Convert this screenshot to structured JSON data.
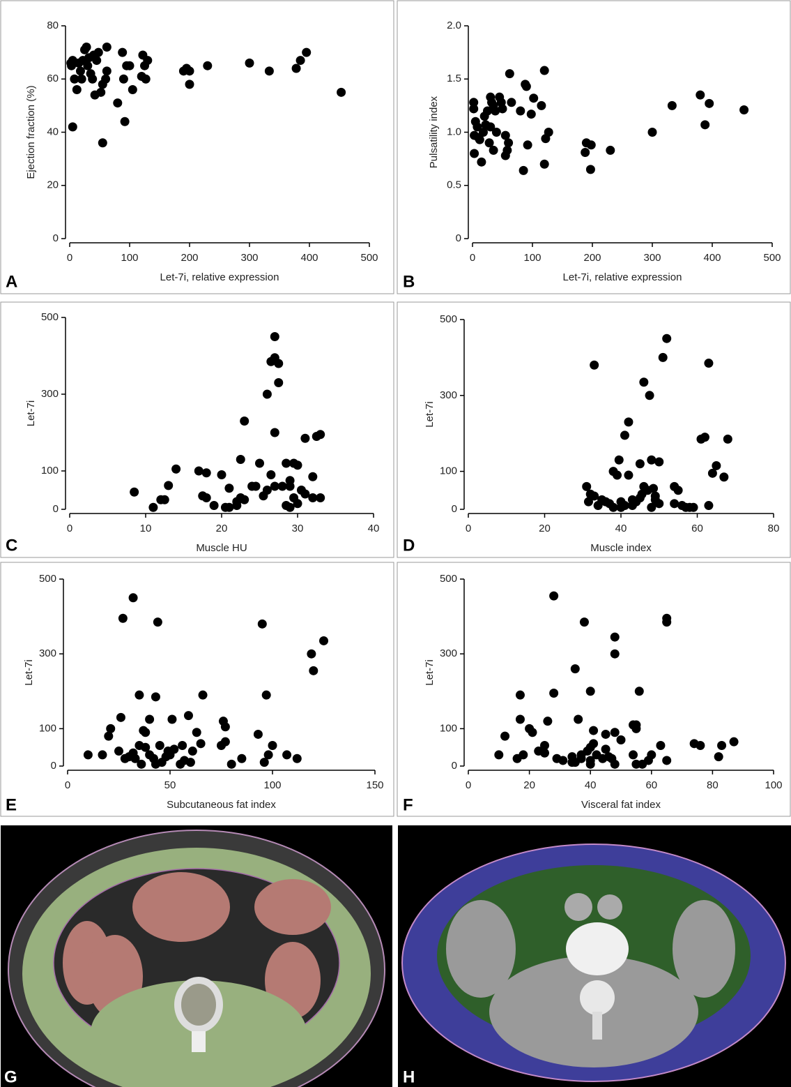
{
  "chart_data": [
    {
      "type": "scatter",
      "panel_label": "A",
      "xlabel": "Let-7i, relative expression",
      "ylabel": "Ejection fraction (%)",
      "color": "#000000",
      "xlim": [
        0,
        500
      ],
      "ylim": [
        0,
        80
      ],
      "xticks": [
        0,
        100,
        200,
        300,
        400,
        500
      ],
      "yticks": [
        0,
        20,
        40,
        60,
        80
      ],
      "x": [
        2,
        3,
        5,
        8,
        5,
        12,
        15,
        18,
        20,
        22,
        25,
        28,
        30,
        32,
        35,
        38,
        40,
        42,
        45,
        48,
        52,
        55,
        55,
        60,
        62,
        62,
        80,
        88,
        90,
        92,
        95,
        100,
        105,
        120,
        122,
        125,
        127,
        130,
        190,
        195,
        200,
        200,
        230,
        300,
        333,
        378,
        385,
        395,
        453
      ],
      "values": [
        66,
        65,
        67,
        60,
        42,
        56,
        66,
        63,
        60,
        67,
        71,
        72,
        65,
        68,
        62,
        60,
        69,
        54,
        67,
        70,
        55,
        58,
        36,
        60,
        72,
        63,
        51,
        70,
        60,
        44,
        65,
        65,
        56,
        61,
        69,
        65,
        60,
        67,
        63,
        64,
        63,
        58,
        65,
        66,
        63,
        64,
        67,
        70,
        55
      ]
    },
    {
      "type": "scatter",
      "panel_label": "B",
      "xlabel": "Let-7i, relative expression",
      "ylabel": "Pulsatility index",
      "color": "#000000",
      "xlim": [
        0,
        500
      ],
      "ylim": [
        0,
        2
      ],
      "xticks": [
        0,
        100,
        200,
        300,
        400,
        500
      ],
      "yticks": [
        0,
        0.5,
        {
          "value": 1,
          "label": "1.0"
        },
        1.5,
        {
          "value": 2,
          "label": "2.0"
        }
      ],
      "x": [
        2,
        2,
        3,
        3,
        5,
        8,
        10,
        12,
        15,
        18,
        20,
        22,
        25,
        28,
        30,
        30,
        32,
        35,
        35,
        38,
        40,
        45,
        48,
        50,
        55,
        55,
        58,
        60,
        62,
        65,
        80,
        85,
        88,
        90,
        92,
        98,
        102,
        115,
        120,
        120,
        122,
        127,
        188,
        190,
        197,
        198,
        230,
        300,
        333,
        380,
        388,
        395,
        453
      ],
      "values": [
        1.22,
        1.28,
        0.97,
        0.8,
        1.1,
        1.05,
        0.95,
        0.93,
        0.72,
        1.0,
        1.15,
        1.07,
        1.2,
        0.9,
        1.33,
        1.05,
        1.28,
        0.83,
        1.25,
        1.2,
        1.0,
        1.33,
        1.28,
        1.22,
        0.97,
        0.78,
        0.83,
        0.9,
        1.55,
        1.28,
        1.2,
        0.64,
        1.45,
        1.43,
        0.88,
        1.17,
        1.32,
        1.25,
        1.58,
        0.7,
        0.94,
        1.0,
        0.81,
        0.9,
        0.65,
        0.88,
        0.83,
        1.0,
        1.25,
        1.35,
        1.07,
        1.27,
        1.21
      ]
    },
    {
      "type": "scatter",
      "panel_label": "C",
      "xlabel": "Muscle HU",
      "ylabel": "Let-7i",
      "color": "#000000",
      "xlim": [
        0,
        40
      ],
      "ylim": [
        0,
        500
      ],
      "xticks": [
        0,
        10,
        20,
        30,
        40
      ],
      "yticks": [
        0,
        100,
        300,
        500
      ],
      "x": [
        8.5,
        11,
        12,
        12.5,
        13,
        14,
        17,
        17.5,
        18,
        18,
        19,
        20,
        20.5,
        21,
        21,
        22,
        22,
        22.5,
        22.5,
        23,
        23,
        24,
        24.5,
        25,
        25.5,
        26,
        26,
        26.5,
        26.5,
        27,
        27,
        27,
        27,
        27.5,
        27.5,
        28,
        28.5,
        28.5,
        29,
        29,
        29,
        29.5,
        29.5,
        30,
        30,
        30.5,
        31,
        31,
        32,
        32,
        32.5,
        33,
        33
      ],
      "values": [
        45,
        5,
        25,
        25,
        62,
        105,
        100,
        35,
        95,
        30,
        10,
        90,
        5,
        5,
        55,
        10,
        20,
        130,
        30,
        25,
        230,
        60,
        60,
        120,
        35,
        300,
        50,
        385,
        90,
        395,
        200,
        450,
        60,
        380,
        330,
        60,
        10,
        120,
        5,
        60,
        75,
        120,
        30,
        15,
        115,
        50,
        40,
        185,
        30,
        85,
        190,
        30,
        195
      ]
    },
    {
      "type": "scatter",
      "panel_label": "D",
      "xlabel": "Muscle index",
      "ylabel": "Let-7i",
      "color": "#000000",
      "xlim": [
        0,
        80
      ],
      "ylim": [
        0,
        500
      ],
      "xticks": [
        0,
        20,
        40,
        60,
        80
      ],
      "yticks": [
        0,
        100,
        300,
        500
      ],
      "x": [
        31,
        31.5,
        32,
        33,
        33,
        34,
        35,
        36,
        37,
        38,
        38,
        39,
        39.5,
        40,
        40,
        41,
        41,
        42,
        42,
        43,
        43,
        44,
        45,
        45,
        45.5,
        46,
        46,
        47,
        47.5,
        48,
        48,
        48.5,
        49,
        49,
        50,
        50,
        51,
        52,
        54,
        54,
        55,
        56,
        57,
        58,
        59,
        61,
        62,
        63,
        63,
        64,
        65,
        67,
        68
      ],
      "values": [
        60,
        20,
        40,
        380,
        35,
        10,
        25,
        20,
        15,
        100,
        5,
        90,
        130,
        20,
        5,
        10,
        195,
        90,
        230,
        25,
        10,
        20,
        30,
        120,
        40,
        60,
        335,
        50,
        300,
        130,
        5,
        55,
        35,
        25,
        125,
        15,
        400,
        450,
        60,
        15,
        50,
        10,
        5,
        5,
        5,
        185,
        190,
        385,
        10,
        95,
        115,
        85,
        185
      ]
    },
    {
      "type": "scatter",
      "panel_label": "E",
      "xlabel": "Subcutaneous fat index",
      "ylabel": "Let-7i",
      "color": "#000000",
      "xlim": [
        0,
        150
      ],
      "ylim": [
        0,
        500
      ],
      "xticks": [
        0,
        50,
        100,
        150
      ],
      "yticks": [
        0,
        100,
        300,
        500
      ],
      "x": [
        10,
        17,
        20,
        21,
        25,
        26,
        27,
        28,
        30,
        32,
        32,
        33,
        35,
        35,
        36,
        37,
        38,
        38,
        40,
        40,
        42,
        43,
        43,
        44,
        45,
        46,
        48,
        49,
        50,
        51,
        52,
        55,
        56,
        57,
        59,
        60,
        61,
        63,
        65,
        66,
        75,
        76,
        77,
        77,
        80,
        85,
        93,
        95,
        96,
        97,
        98,
        100,
        107,
        112,
        119,
        120,
        125
      ],
      "values": [
        30,
        30,
        80,
        100,
        40,
        130,
        395,
        20,
        25,
        450,
        35,
        20,
        55,
        190,
        5,
        95,
        50,
        90,
        125,
        30,
        20,
        185,
        5,
        385,
        55,
        10,
        25,
        40,
        30,
        125,
        45,
        5,
        55,
        15,
        135,
        10,
        40,
        90,
        60,
        190,
        55,
        120,
        105,
        65,
        5,
        20,
        85,
        380,
        10,
        190,
        30,
        55,
        30,
        20,
        300,
        255,
        335
      ]
    },
    {
      "type": "scatter",
      "panel_label": "F",
      "xlabel": "Visceral fat index",
      "ylabel": "Let-7i",
      "color": "#000000",
      "xlim": [
        0,
        100
      ],
      "ylim": [
        0,
        500
      ],
      "xticks": [
        0,
        20,
        40,
        60,
        80,
        100
      ],
      "yticks": [
        0,
        100,
        300,
        500
      ],
      "x": [
        10,
        12,
        16,
        17,
        17,
        18,
        20,
        21,
        23,
        25,
        25,
        26,
        28,
        28,
        29,
        31,
        34,
        34,
        35,
        35,
        36,
        37,
        37,
        38,
        39,
        40,
        40,
        40,
        40,
        41,
        41,
        42,
        44,
        45,
        45,
        46,
        47,
        48,
        48,
        48,
        48,
        50,
        54,
        54,
        55,
        55,
        55,
        56,
        57,
        59,
        60,
        63,
        65,
        65,
        65,
        74,
        76,
        82,
        83,
        87
      ],
      "values": [
        30,
        80,
        20,
        125,
        190,
        30,
        100,
        90,
        40,
        35,
        55,
        120,
        195,
        455,
        20,
        15,
        25,
        10,
        10,
        260,
        125,
        30,
        20,
        385,
        40,
        50,
        15,
        200,
        5,
        60,
        95,
        30,
        20,
        45,
        85,
        25,
        20,
        5,
        90,
        345,
        300,
        70,
        110,
        30,
        5,
        100,
        110,
        200,
        5,
        15,
        30,
        55,
        15,
        395,
        385,
        60,
        55,
        25,
        55,
        65
      ]
    }
  ],
  "images": [
    {
      "label": "G"
    },
    {
      "label": "H"
    }
  ]
}
